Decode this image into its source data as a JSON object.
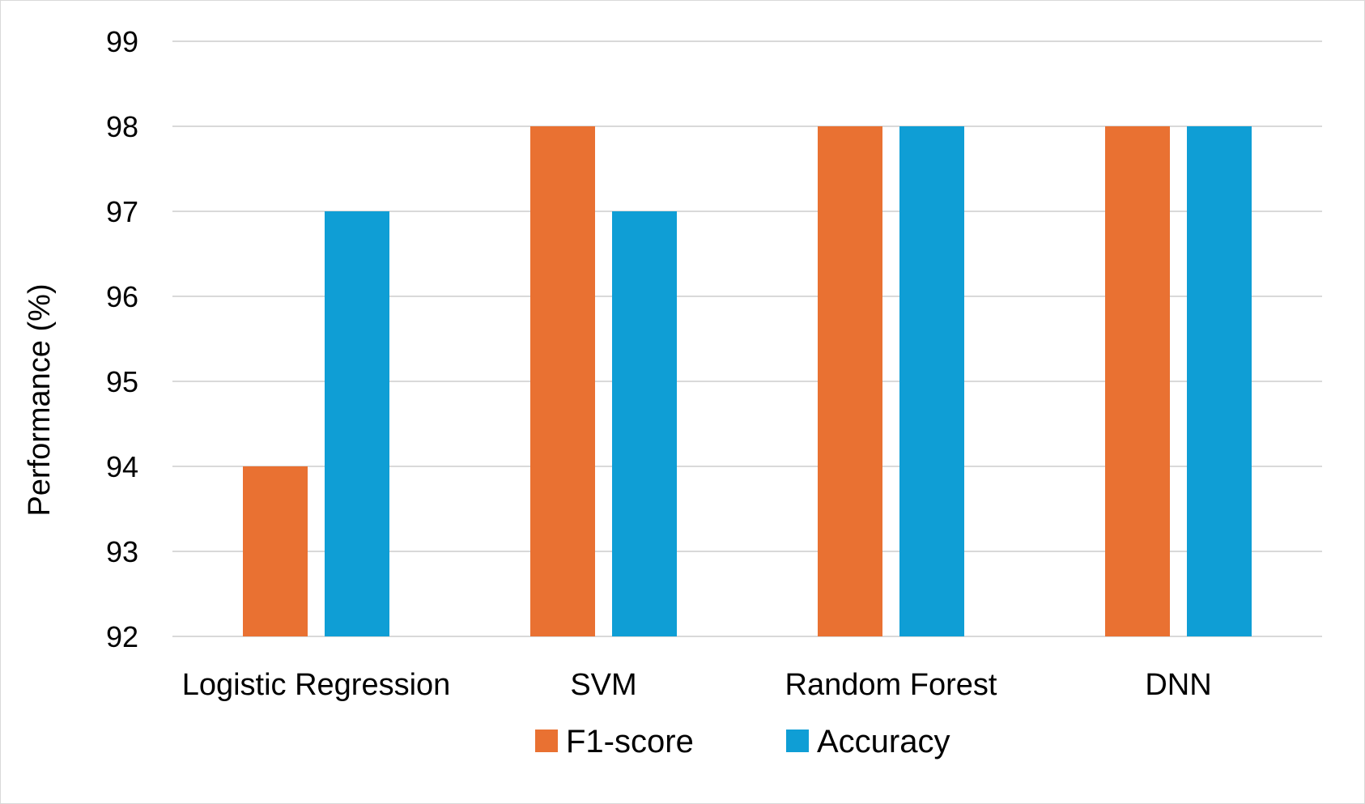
{
  "chart_data": {
    "type": "bar",
    "title": "",
    "xlabel": "",
    "ylabel": "Performance (%)",
    "ylim": [
      92,
      99
    ],
    "yticks": [
      92,
      93,
      94,
      95,
      96,
      97,
      98,
      99
    ],
    "grid": true,
    "legend_position": "bottom",
    "categories": [
      "Logistic Regression",
      "SVM",
      "Random Forest",
      "DNN"
    ],
    "series": [
      {
        "name": "F1-score",
        "color": "#E97132",
        "values": [
          94,
          98,
          98,
          98
        ]
      },
      {
        "name": "Accuracy",
        "color": "#0F9ED5",
        "values": [
          97,
          97,
          98,
          98
        ]
      }
    ]
  }
}
